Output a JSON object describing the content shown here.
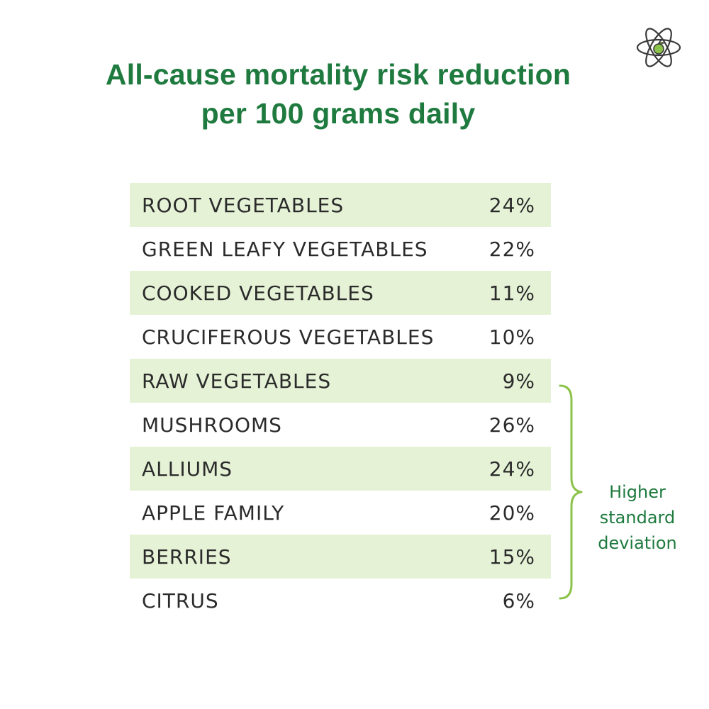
{
  "title": {
    "line1": "All-cause mortality risk reduction",
    "line2": "per 100 grams daily"
  },
  "logo": {
    "icon": "atom-apple-icon"
  },
  "colors": {
    "title": "#1e7a3e",
    "row_shade": "#e5f2d6",
    "brace": "#8bc34a",
    "text": "#2b2b2b"
  },
  "chart_data": {
    "type": "table",
    "title": "All-cause mortality risk reduction per 100 grams daily",
    "rows": [
      {
        "label": "ROOT VEGETABLES",
        "value": "24%"
      },
      {
        "label": "GREEN LEAFY VEGETABLES",
        "value": "22%"
      },
      {
        "label": "COOKED VEGETABLES",
        "value": "11%"
      },
      {
        "label": "CRUCIFEROUS VEGETABLES",
        "value": "10%"
      },
      {
        "label": "RAW VEGETABLES",
        "value": "9%"
      },
      {
        "label": "MUSHROOMS",
        "value": "26%"
      },
      {
        "label": "ALLIUMS",
        "value": "24%"
      },
      {
        "label": "APPLE FAMILY",
        "value": "20%"
      },
      {
        "label": "BERRIES",
        "value": "15%"
      },
      {
        "label": "CITRUS",
        "value": "6%"
      }
    ],
    "annotation": {
      "lines": [
        "Higher",
        "standard",
        "deviation"
      ],
      "applies_to": [
        "RAW VEGETABLES",
        "MUSHROOMS",
        "ALLIUMS",
        "APPLE FAMILY",
        "BERRIES",
        "CITRUS"
      ]
    }
  }
}
